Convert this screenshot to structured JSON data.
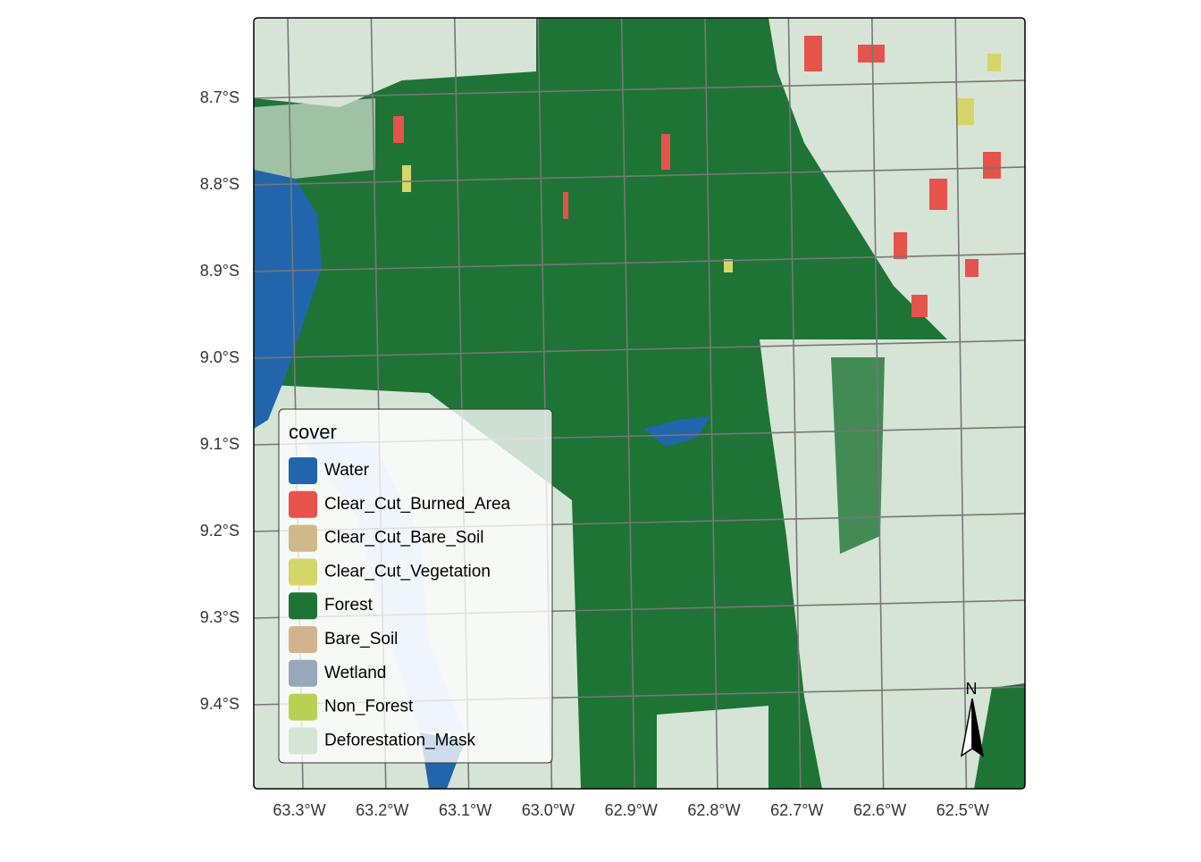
{
  "map": {
    "legend": {
      "title": "cover",
      "items": [
        {
          "label": "Water",
          "color": "#2166ac"
        },
        {
          "label": "Clear_Cut_Burned_Area",
          "color": "#e5534b"
        },
        {
          "label": "Clear_Cut_Bare_Soil",
          "color": "#cfb98a"
        },
        {
          "label": "Clear_Cut_Vegetation",
          "color": "#d4d66a"
        },
        {
          "label": "Forest",
          "color": "#1e7435"
        },
        {
          "label": "Bare_Soil",
          "color": "#d2b48c"
        },
        {
          "label": "Wetland",
          "color": "#94aabb"
        },
        {
          "label": "Non_Forest",
          "color": "#b8d152"
        },
        {
          "label": "Deforestation_Mask",
          "color": "#d6e4d6"
        }
      ]
    },
    "x_labels": [
      "63.3°W",
      "63.2°W",
      "63.1°W",
      "63.0°W",
      "62.9°W",
      "62.8°W",
      "62.7°W",
      "62.6°W",
      "62.5°W"
    ],
    "y_labels": [
      "8.7°S",
      "8.8°S",
      "8.9°S",
      "9.0°S",
      "9.1°S",
      "9.2°S",
      "9.3°S",
      "9.4°S"
    ],
    "north": "N"
  }
}
